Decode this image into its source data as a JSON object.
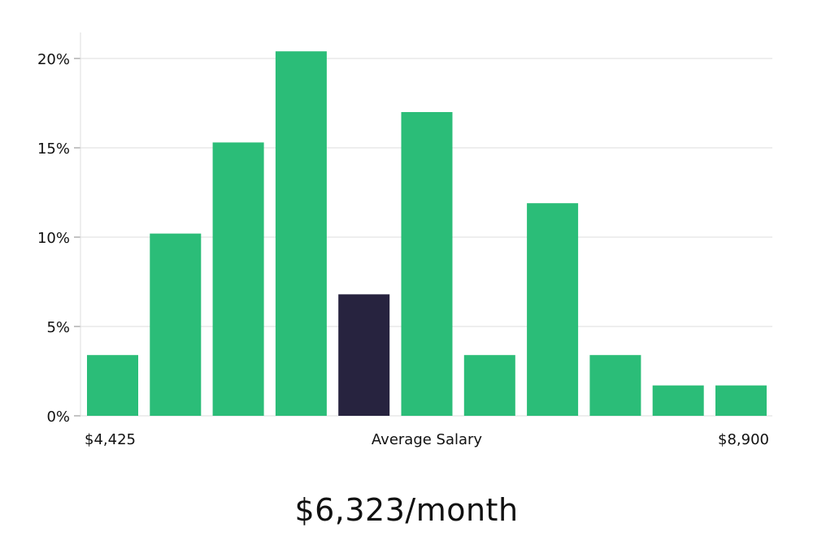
{
  "chart_data": {
    "type": "bar",
    "categories": [
      "$4,425",
      "",
      "",
      "",
      "Average Salary",
      "",
      "",
      "",
      "",
      "",
      "$8,900"
    ],
    "values": [
      3.4,
      10.2,
      15.3,
      20.4,
      6.8,
      17.0,
      3.4,
      11.9,
      3.4,
      1.7,
      1.7
    ],
    "highlight_index": 4,
    "x_labels": {
      "left": "$4,425",
      "center": "Average Salary",
      "right": "$8,900"
    },
    "y_ticks": [
      0,
      5,
      10,
      15,
      20
    ],
    "y_tick_labels": [
      "0%",
      "5%",
      "10%",
      "15%",
      "20%"
    ],
    "ylim": [
      0,
      21.4
    ],
    "grid": true,
    "colors": {
      "bar": "#2bbd78",
      "highlight": "#27233f",
      "grid": "#dddddd"
    }
  },
  "caption": "$6,323/month"
}
